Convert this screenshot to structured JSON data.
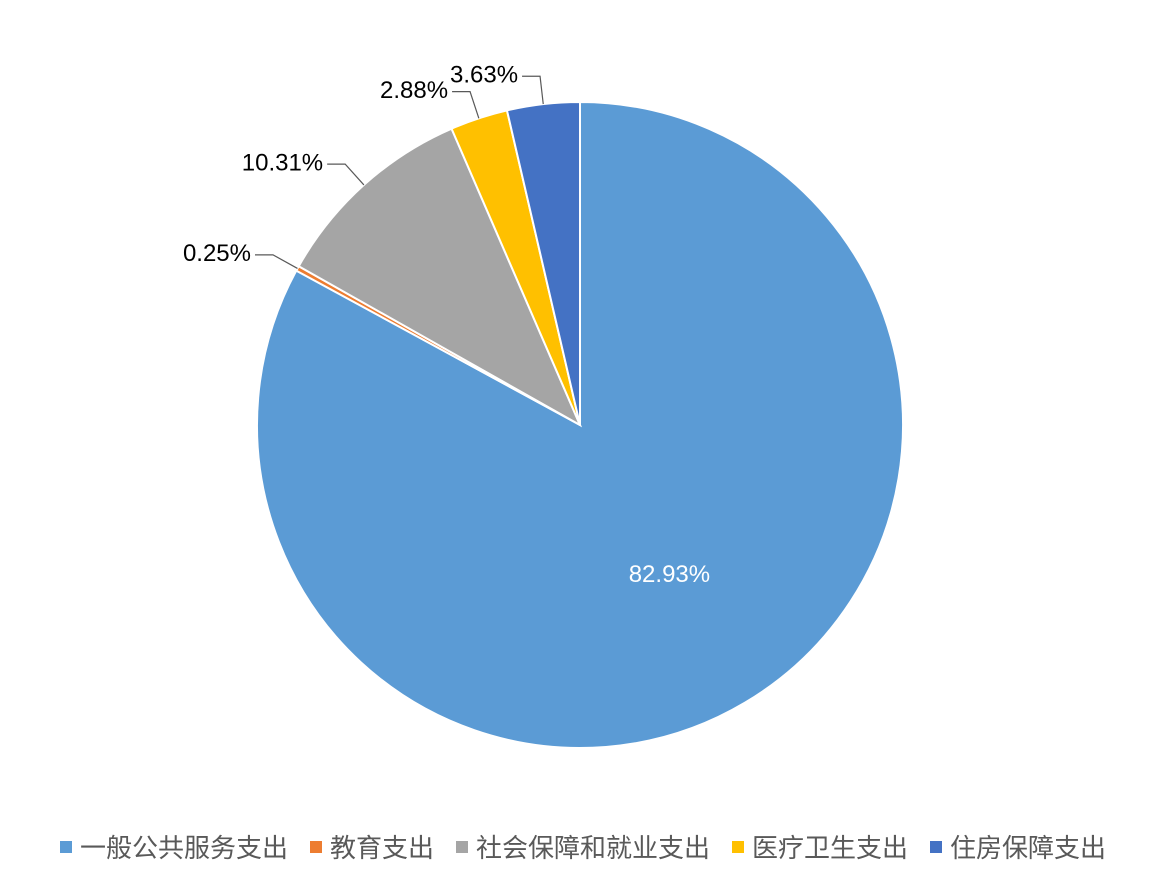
{
  "chart_data": {
    "type": "pie",
    "categories": [
      "一般公共服务支出",
      "教育支出",
      "社会保障和就业支出",
      "医疗卫生支出",
      "住房保障支出"
    ],
    "values": [
      82.93,
      0.25,
      10.31,
      2.88,
      3.63
    ],
    "value_labels": [
      "82.93%",
      "0.25%",
      "10.31%",
      "2.88%",
      "3.63%"
    ],
    "colors": [
      "#5b9bd5",
      "#ed7d31",
      "#a5a5a5",
      "#ffc000",
      "#4472c4"
    ],
    "legend": "bottom"
  }
}
